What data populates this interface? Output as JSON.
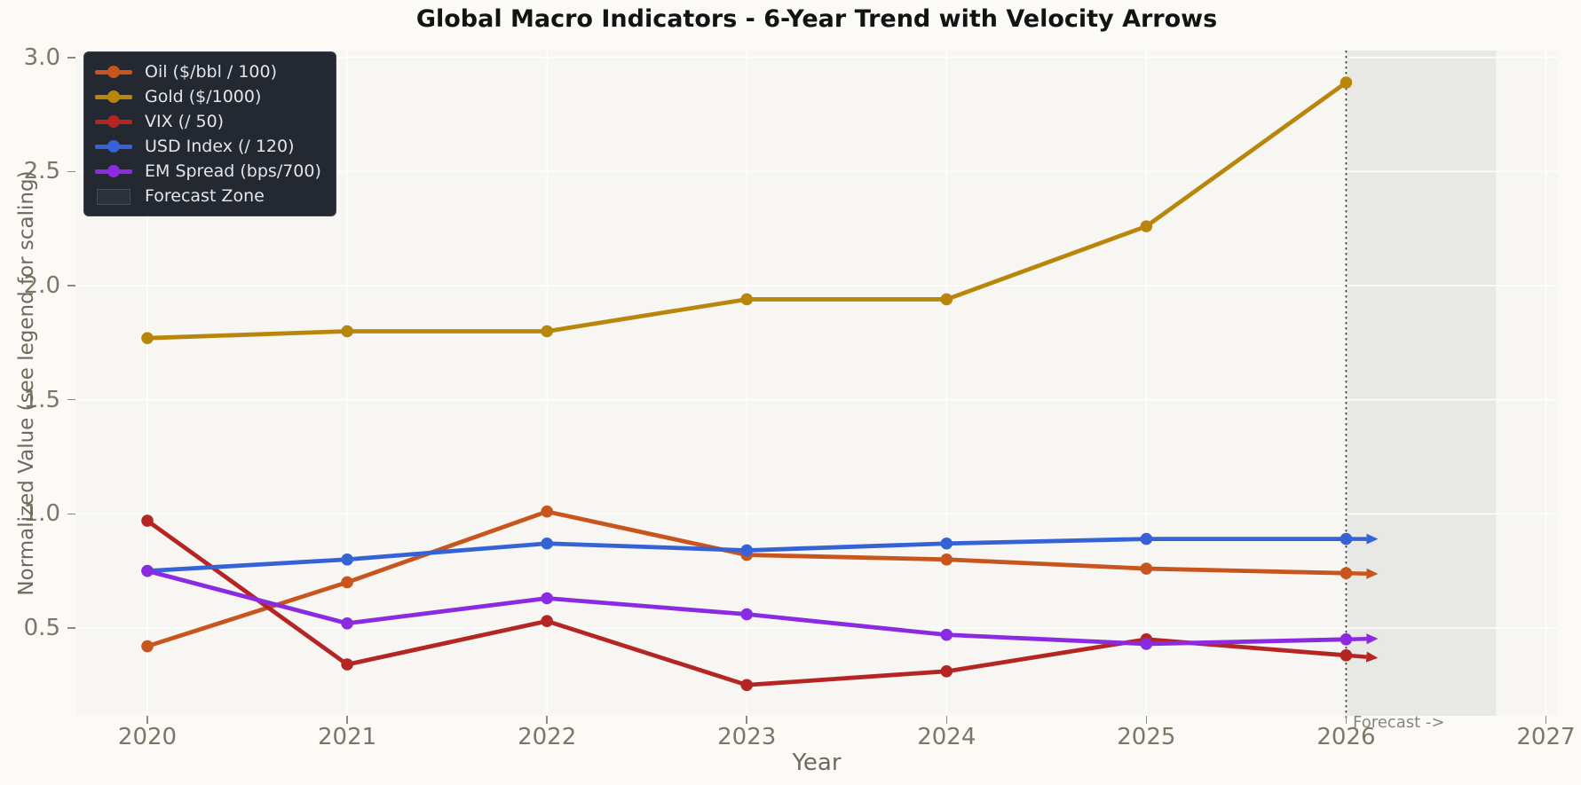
{
  "chart_data": {
    "type": "line",
    "title": "Global Macro Indicators - 6-Year Trend with Velocity Arrows",
    "xlabel": "Year",
    "ylabel": "Normalized Value (see legend for scaling)",
    "x": [
      2020,
      2021,
      2022,
      2023,
      2024,
      2025,
      2026
    ],
    "series": [
      {
        "name": "Oil ($/bbl / 100)",
        "color": "#c8551e",
        "values": [
          0.42,
          0.7,
          1.01,
          0.82,
          0.8,
          0.76,
          0.74
        ],
        "velocity_arrow": true
      },
      {
        "name": "Gold ($/1000)",
        "color": "#b8860b",
        "values": [
          1.77,
          1.8,
          1.8,
          1.94,
          1.94,
          2.26,
          2.89
        ],
        "velocity_arrow": false
      },
      {
        "name": "VIX (/ 50)",
        "color": "#b52524",
        "values": [
          0.97,
          0.34,
          0.53,
          0.25,
          0.31,
          0.45,
          0.38
        ],
        "velocity_arrow": true
      },
      {
        "name": "USD Index (/ 120)",
        "color": "#3563d6",
        "values": [
          0.75,
          0.8,
          0.87,
          0.84,
          0.87,
          0.89,
          0.89
        ],
        "velocity_arrow": true
      },
      {
        "name": "EM Spread (bps/700)",
        "color": "#8a2be2",
        "values": [
          0.75,
          0.52,
          0.63,
          0.56,
          0.47,
          0.43,
          0.45
        ],
        "velocity_arrow": true
      }
    ],
    "xlim": [
      2019.64,
      2027.06
    ],
    "ylim": [
      0.115,
      3.03
    ],
    "xticks": [
      2020,
      2021,
      2022,
      2023,
      2024,
      2025,
      2026,
      2027
    ],
    "xtick_labels": [
      "2020",
      "2021",
      "2022",
      "2023",
      "2024",
      "2025",
      "2026",
      "2027"
    ],
    "yticks": [
      0.5,
      1.0,
      1.5,
      2.0,
      2.5,
      3.0
    ],
    "ytick_labels": [
      "0.5",
      "1.0",
      "1.5",
      "2.0",
      "2.5",
      "3.0"
    ],
    "grid": true,
    "legend_position": "upper left",
    "legend_zone_label": "Forecast Zone",
    "forecast": {
      "zone_start": 2026,
      "zone_end": 2026.75,
      "divider_x": 2026,
      "annotation": "Forecast ->"
    },
    "style_colors": {
      "figure_bg": "#fbfaf7",
      "axes_bg": "#f7f6f2",
      "grid": "#fdfdfa",
      "forecast_fill": "rgba(110,110,110,0.10)",
      "forecast_line": "#3f3f3f",
      "tick_text": "#7d7668",
      "legend_bg": "#232831",
      "legend_text": "#e3e5e8",
      "title_text": "#131313"
    }
  }
}
